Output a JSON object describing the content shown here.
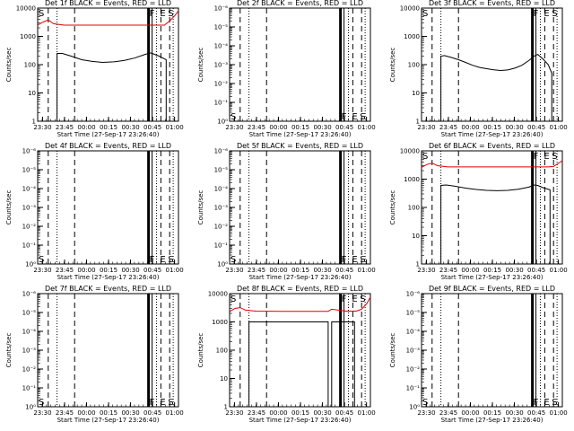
{
  "page": {
    "xlabel": "Start Time (27-Sep-17 23:26:40)",
    "ylabel": "Counts/sec",
    "x_tick_labels": [
      "23:30",
      "23:45",
      "00:00",
      "00:15",
      "00:30",
      "00:45",
      "01:00"
    ],
    "line_colors": {
      "events": "#000000",
      "lld": "#e00000"
    }
  },
  "chart_data": [
    {
      "type": "line",
      "title": "Det 1f BLACK = Events, RED = LLD",
      "scale": "log",
      "ylim": [
        1,
        10000
      ],
      "y_tick_labels": [
        "1",
        "10",
        "100",
        "1000",
        "10000"
      ],
      "series": [
        {
          "name": "Events",
          "color": "#000000",
          "x": [
            11,
            11,
            14,
            19,
            25,
            31,
            37,
            43,
            49,
            55,
            61,
            64,
            65,
            69,
            73,
            73
          ],
          "y": [
            0,
            250,
            250,
            200,
            150,
            130,
            120,
            125,
            140,
            170,
            230,
            260,
            250,
            200,
            150,
            0
          ]
        },
        {
          "name": "LLD",
          "color": "#e00000",
          "x": [
            0,
            3,
            6,
            9,
            15,
            30,
            45,
            60,
            66,
            69,
            72,
            75,
            78,
            80
          ],
          "y": [
            2500,
            3200,
            3800,
            2800,
            2500,
            2500,
            2500,
            2500,
            2500,
            2500,
            2500,
            3500,
            5500,
            8000
          ]
        }
      ],
      "markers": [
        {
          "text": "S",
          "x": 0.5,
          "y": 8000
        },
        {
          "text": "F",
          "x": 63.5,
          "y": 8000
        },
        {
          "text": "E",
          "x": 69.5,
          "y": 8000
        },
        {
          "text": "S",
          "x": 74,
          "y": 8000
        }
      ]
    },
    {
      "type": "line",
      "title": "Det 2f BLACK = Events, RED = LLD",
      "scale": "log",
      "ylim": [
        1,
        1e-06
      ],
      "y_tick_labels": [
        "10⁰",
        "10⁻¹",
        "10⁻²",
        "10⁻³",
        "10⁻⁴",
        "10⁻⁵",
        "10⁻⁶"
      ],
      "series": [],
      "markers": [
        {
          "text": "S",
          "x": 0.5,
          "y": 1
        },
        {
          "text": "F",
          "x": 63.5,
          "y": 1
        },
        {
          "text": "E",
          "x": 69.5,
          "y": 1
        },
        {
          "text": "S",
          "x": 74,
          "y": 1
        }
      ]
    },
    {
      "type": "line",
      "title": "Det 3f BLACK = Events, RED = LLD",
      "scale": "log",
      "ylim": [
        1,
        10000
      ],
      "y_tick_labels": [
        "1",
        "10",
        "100",
        "1000",
        "10000"
      ],
      "series": [
        {
          "name": "Events",
          "color": "#000000",
          "x": [
            11,
            11,
            13,
            17,
            21,
            25,
            29,
            33,
            37,
            41,
            45,
            49,
            53,
            57,
            61,
            64,
            66,
            69,
            72,
            74,
            74
          ],
          "y": [
            0,
            200,
            210,
            180,
            150,
            120,
            95,
            80,
            72,
            66,
            62,
            65,
            75,
            95,
            140,
            200,
            230,
            160,
            100,
            50,
            0
          ]
        }
      ],
      "markers": [
        {
          "text": "S",
          "x": 0.5,
          "y": 8000
        },
        {
          "text": "F",
          "x": 63.5,
          "y": 8000
        },
        {
          "text": "E",
          "x": 69.5,
          "y": 8000
        },
        {
          "text": "S",
          "x": 74,
          "y": 8000
        }
      ]
    },
    {
      "type": "line",
      "title": "Det 4f BLACK = Events, RED = LLD",
      "scale": "log",
      "ylim": [
        1,
        1e-06
      ],
      "y_tick_labels": [
        "10⁰",
        "10⁻¹",
        "10⁻²",
        "10⁻³",
        "10⁻⁴",
        "10⁻⁵",
        "10⁻⁶"
      ],
      "series": [],
      "markers": [
        {
          "text": "S",
          "x": 0.5,
          "y": 1
        },
        {
          "text": "F",
          "x": 63.5,
          "y": 1
        },
        {
          "text": "E",
          "x": 69.5,
          "y": 1
        },
        {
          "text": "S",
          "x": 74,
          "y": 1
        }
      ]
    },
    {
      "type": "line",
      "title": "Det 5f BLACK = Events, RED = LLD",
      "scale": "log",
      "ylim": [
        1,
        1e-06
      ],
      "y_tick_labels": [
        "10⁰",
        "10⁻¹",
        "10⁻²",
        "10⁻³",
        "10⁻⁴",
        "10⁻⁵",
        "10⁻⁶"
      ],
      "series": [],
      "markers": [
        {
          "text": "S",
          "x": 0.5,
          "y": 1
        },
        {
          "text": "F",
          "x": 63.5,
          "y": 1
        },
        {
          "text": "E",
          "x": 69.5,
          "y": 1
        },
        {
          "text": "S",
          "x": 74,
          "y": 1
        }
      ]
    },
    {
      "type": "line",
      "title": "Det 6f BLACK = Events, RED = LLD",
      "scale": "log",
      "ylim": [
        1,
        10000
      ],
      "y_tick_labels": [
        "1",
        "10",
        "100",
        "1000",
        "10000"
      ],
      "series": [
        {
          "name": "Events",
          "color": "#000000",
          "x": [
            11,
            11,
            14,
            19,
            25,
            31,
            37,
            43,
            49,
            55,
            61,
            64,
            66,
            69,
            73,
            73
          ],
          "y": [
            0,
            600,
            620,
            560,
            480,
            430,
            400,
            390,
            400,
            440,
            520,
            620,
            600,
            500,
            420,
            0
          ]
        },
        {
          "name": "LLD",
          "color": "#e00000",
          "x": [
            0,
            3,
            6,
            9,
            15,
            30,
            45,
            60,
            66,
            69,
            72,
            75,
            78,
            80
          ],
          "y": [
            2600,
            3300,
            3700,
            3000,
            2700,
            2700,
            2700,
            2700,
            2700,
            2700,
            2700,
            2800,
            3700,
            4500
          ]
        }
      ],
      "markers": [
        {
          "text": "S",
          "x": 0.5,
          "y": 8000
        },
        {
          "text": "F",
          "x": 63.5,
          "y": 8000
        },
        {
          "text": "E",
          "x": 69.5,
          "y": 8000
        },
        {
          "text": "S",
          "x": 74,
          "y": 8000
        }
      ]
    },
    {
      "type": "line",
      "title": "Det 7f BLACK = Events, RED = LLD",
      "scale": "log",
      "ylim": [
        1,
        1e-06
      ],
      "y_tick_labels": [
        "10⁰",
        "10⁻¹",
        "10⁻²",
        "10⁻³",
        "10⁻⁴",
        "10⁻⁵",
        "10⁻⁶"
      ],
      "series": [],
      "markers": [
        {
          "text": "S",
          "x": 0.5,
          "y": 1
        },
        {
          "text": "F",
          "x": 63.5,
          "y": 1
        },
        {
          "text": "E",
          "x": 69.5,
          "y": 1
        },
        {
          "text": "S",
          "x": 74,
          "y": 1
        }
      ]
    },
    {
      "type": "line",
      "title": "Det 8f BLACK = Events, RED = LLD",
      "scale": "log",
      "ylim": [
        1,
        10000
      ],
      "y_tick_labels": [
        "1",
        "10",
        "100",
        "1000",
        "10000"
      ],
      "series": [
        {
          "name": "Events",
          "color": "#000000",
          "x": [
            11,
            11,
            25,
            45,
            56,
            56,
            58,
            58,
            66,
            69,
            71,
            71
          ],
          "y": [
            0,
            1000,
            1000,
            1000,
            1000,
            0,
            0,
            1000,
            1000,
            1000,
            1000,
            0
          ]
        },
        {
          "name": "LLD",
          "color": "#e00000",
          "x": [
            0,
            3,
            6,
            9,
            15,
            30,
            45,
            56,
            58,
            66,
            69,
            72,
            75,
            78,
            80
          ],
          "y": [
            2300,
            3000,
            3200,
            2600,
            2400,
            2350,
            2350,
            2350,
            2800,
            2400,
            2400,
            2400,
            2800,
            4500,
            7500
          ]
        }
      ],
      "markers": [
        {
          "text": "S",
          "x": 0.5,
          "y": 8000
        },
        {
          "text": "F",
          "x": 63.5,
          "y": 8000
        },
        {
          "text": "E",
          "x": 69.5,
          "y": 8000
        },
        {
          "text": "S",
          "x": 74,
          "y": 8000
        }
      ]
    },
    {
      "type": "line",
      "title": "Det 9f BLACK = Events, RED = LLD",
      "scale": "log",
      "ylim": [
        1,
        1e-06
      ],
      "y_tick_labels": [
        "10⁰",
        "10⁻¹",
        "10⁻²",
        "10⁻³",
        "10⁻⁴",
        "10⁻⁵",
        "10⁻⁶"
      ],
      "series": [],
      "markers": [
        {
          "text": "S",
          "x": 0.5,
          "y": 1
        },
        {
          "text": "F",
          "x": 63.5,
          "y": 1
        },
        {
          "text": "E",
          "x": 69.5,
          "y": 1
        },
        {
          "text": "S",
          "x": 74,
          "y": 1
        }
      ]
    }
  ]
}
